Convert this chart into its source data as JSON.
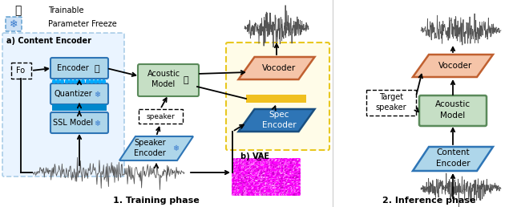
{
  "bg_color": "#ffffff",
  "colors": {
    "encoder_fill": "#aed6ea",
    "encoder_edge": "#2e75b6",
    "acoustic_fill": "#c6dfc5",
    "acoustic_edge": "#5a8a5a",
    "vocoder_fill": "#f5c4a8",
    "vocoder_edge": "#c06030",
    "speaker_enc_fill": "#aed6ea",
    "speaker_enc_edge": "#2e75b6",
    "spec_enc_fill": "#2e75b6",
    "spec_enc_edge": "#1a4f80",
    "content_enc_fill": "#aed6ea",
    "content_enc_edge": "#2e75b6",
    "yellow_connector": "#f0c020",
    "quantizer_fill": "#aed6ea",
    "quantizer_edge": "#2e75b6",
    "ssl_fill": "#aed6ea",
    "ssl_edge": "#2e75b6",
    "cyan_dots": "#00aaff",
    "blue_bar": "#0088cc",
    "vae_fill": "#fffce8",
    "vae_edge": "#e8c820",
    "content_region_fill": "#ddeeff",
    "content_region_edge": "#7ab0d8"
  },
  "phase1_label": "1. Training phase",
  "phase2_label": "2. Inference phase",
  "vae_label": "b) VAE",
  "content_enc_label": "a) Content Encoder"
}
